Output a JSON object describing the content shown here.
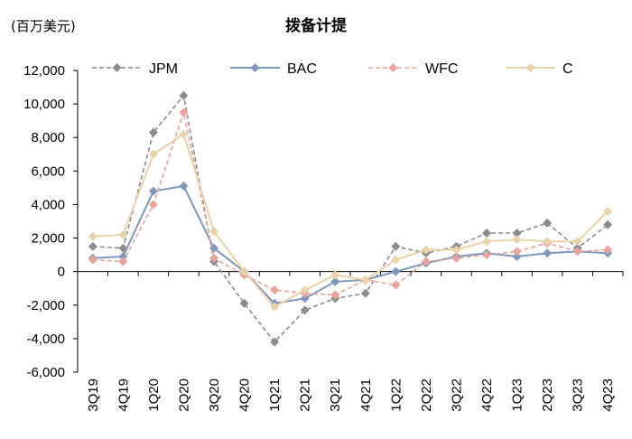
{
  "chart_data": {
    "type": "line",
    "title": "拨备计提",
    "unit_label": "(百万美元)",
    "categories": [
      "3Q19",
      "4Q19",
      "1Q20",
      "2Q20",
      "3Q20",
      "4Q20",
      "1Q21",
      "2Q21",
      "3Q21",
      "4Q21",
      "1Q22",
      "2Q22",
      "3Q22",
      "4Q22",
      "1Q23",
      "2Q23",
      "3Q23",
      "4Q23"
    ],
    "ylim": [
      -6000,
      12000
    ],
    "yticks": [
      {
        "value": 12000,
        "label": "12,000"
      },
      {
        "value": 10000,
        "label": "10,000"
      },
      {
        "value": 8000,
        "label": "8,000"
      },
      {
        "value": 6000,
        "label": "6,000"
      },
      {
        "value": 4000,
        "label": "4,000"
      },
      {
        "value": 2000,
        "label": "2,000"
      },
      {
        "value": 0,
        "label": "0"
      },
      {
        "value": -2000,
        "label": "-2,000"
      },
      {
        "value": -4000,
        "label": "-4,000"
      },
      {
        "value": -6000,
        "label": "-6,000"
      }
    ],
    "grid": false,
    "legend_position": "top",
    "series": [
      {
        "name": "JPM",
        "color": "#8c8c8c",
        "dashed": true,
        "values": [
          1500,
          1400,
          8300,
          10500,
          600,
          -1900,
          -4200,
          -2300,
          -1600,
          -1300,
          1500,
          1100,
          1500,
          2300,
          2300,
          2900,
          1400,
          2800
        ]
      },
      {
        "name": "BAC",
        "color": "#7f97b8",
        "dashed": false,
        "values": [
          800,
          900,
          4800,
          5100,
          1400,
          0,
          -1900,
          -1600,
          -600,
          -500,
          0,
          500,
          900,
          1100,
          900,
          1100,
          1200,
          1100
        ]
      },
      {
        "name": "WFC",
        "color": "#e8a39b",
        "dashed": true,
        "values": [
          700,
          600,
          4000,
          9500,
          800,
          -200,
          -1100,
          -1300,
          -1400,
          -500,
          -800,
          600,
          800,
          1000,
          1200,
          1700,
          1200,
          1300
        ]
      },
      {
        "name": "C",
        "color": "#ead2a8",
        "dashed": false,
        "values": [
          2100,
          2200,
          7000,
          8200,
          2400,
          0,
          -2100,
          -1100,
          -200,
          -500,
          700,
          1300,
          1300,
          1800,
          1900,
          1800,
          1800,
          3600
        ]
      }
    ]
  }
}
